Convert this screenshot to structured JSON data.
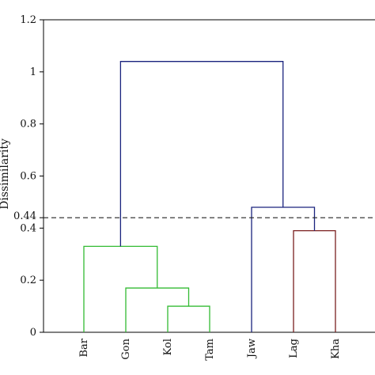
{
  "chart_data": {
    "type": "dendrogram",
    "ylabel": "Dissimilarity",
    "ylim": [
      0,
      1.2
    ],
    "yticks": [
      0,
      0.2,
      0.4,
      0.6,
      0.8,
      1,
      1.2
    ],
    "ytick_labels": [
      "0",
      "0.2",
      "0.4",
      "0.6",
      "0.8",
      "1",
      "1.2"
    ],
    "leaves": [
      "Bar",
      "Gon",
      "Kol",
      "Tam",
      "Jaw",
      "Lag",
      "Kha"
    ],
    "threshold": {
      "value": 0.44,
      "label": "0.44",
      "style": "dashed"
    },
    "merges": [
      {
        "children": [
          "Kol",
          "Tam"
        ],
        "height": 0.1,
        "color": "#33bb33"
      },
      {
        "children": [
          "Gon",
          "Kol+Tam"
        ],
        "height": 0.17,
        "color": "#33bb33"
      },
      {
        "children": [
          "Bar",
          "Gon+Kol+Tam"
        ],
        "height": 0.33,
        "color": "#33bb33"
      },
      {
        "children": [
          "Lag",
          "Kha"
        ],
        "height": 0.39,
        "color": "#7a1f1f"
      },
      {
        "children": [
          "Jaw",
          "Lag+Kha"
        ],
        "height": 0.48,
        "color": "#1a237e"
      },
      {
        "children": [
          "Bar+Gon+Kol+Tam",
          "Jaw+Lag+Kha"
        ],
        "height": 1.04,
        "color": "#1a237e"
      }
    ],
    "grid": false
  }
}
